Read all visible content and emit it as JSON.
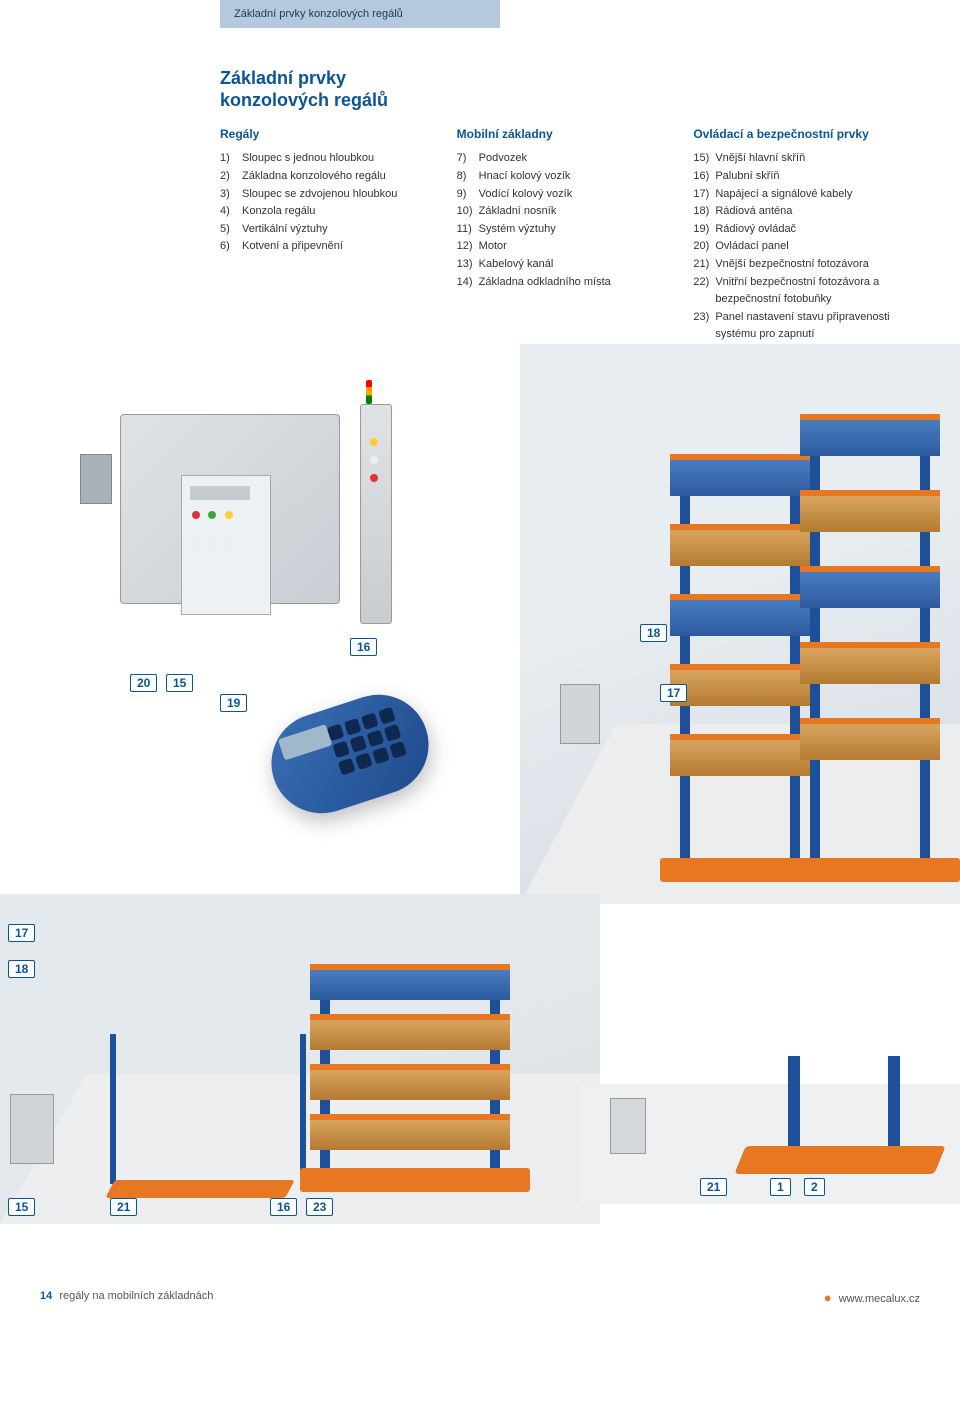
{
  "header_tab": "Základní prvky konzolových regálů",
  "title": "Základní prvky\nkonzolových regálů",
  "columns": [
    {
      "heading": "Regály",
      "items": [
        {
          "n": "1)",
          "t": "Sloupec s jednou hloubkou"
        },
        {
          "n": "2)",
          "t": "Základna konzolového regálu"
        },
        {
          "n": "3)",
          "t": "Sloupec se zdvojenou hloubkou"
        },
        {
          "n": "4)",
          "t": "Konzola regálu"
        },
        {
          "n": "5)",
          "t": "Vertikální výztuhy"
        },
        {
          "n": "6)",
          "t": "Kotvení a připevnění"
        }
      ]
    },
    {
      "heading": "Mobilní základny",
      "items": [
        {
          "n": "7)",
          "t": "Podvozek"
        },
        {
          "n": "8)",
          "t": "Hnací kolový vozík"
        },
        {
          "n": "9)",
          "t": "Vodící kolový vozík"
        },
        {
          "n": "10)",
          "t": "Základní nosník"
        },
        {
          "n": "11)",
          "t": "Systém výztuhy"
        },
        {
          "n": "12)",
          "t": "Motor"
        },
        {
          "n": "13)",
          "t": "Kabelový kanál"
        },
        {
          "n": "14)",
          "t": "Základna odkladního místa"
        }
      ]
    },
    {
      "heading": "Ovládací a bezpečnostní prvky",
      "items": [
        {
          "n": "15)",
          "t": "Vnější hlavní skříň"
        },
        {
          "n": "16)",
          "t": "Palubní skříň"
        },
        {
          "n": "17)",
          "t": "Napájecí a signálové kabely"
        },
        {
          "n": "18)",
          "t": "Rádiová anténa"
        },
        {
          "n": "19)",
          "t": "Rádiový ovládač"
        },
        {
          "n": "20)",
          "t": "Ovládací panel"
        },
        {
          "n": "21)",
          "t": "Vnější bezpečnostní fotozávora"
        },
        {
          "n": "22)",
          "t": "Vnitřní bezpečnostní fotozávora a bezpečnostní fotobuňky"
        },
        {
          "n": "23)",
          "t": "Panel nastavení stavu připravenosti systému pro zapnutí"
        }
      ]
    }
  ],
  "callouts": {
    "c18a": "18",
    "c16": "16",
    "c20": "20",
    "c15a": "15",
    "c19": "19",
    "c18b": "18",
    "c17a": "17",
    "c17b": "17",
    "c18c": "18",
    "c15b": "15",
    "c21a": "21",
    "c16b": "16",
    "c23": "23",
    "c21b": "21",
    "c1": "1",
    "c2": "2"
  },
  "colors": {
    "brand_blue": "#0a5599",
    "steel_blue": "#1e4f99",
    "orange": "#e87722",
    "header_bg": "#b4c8de",
    "wood": "#d8a560"
  },
  "footer": {
    "page": "14",
    "left": "regály na mobilních základnách",
    "right": "www.mecalux.cz"
  }
}
